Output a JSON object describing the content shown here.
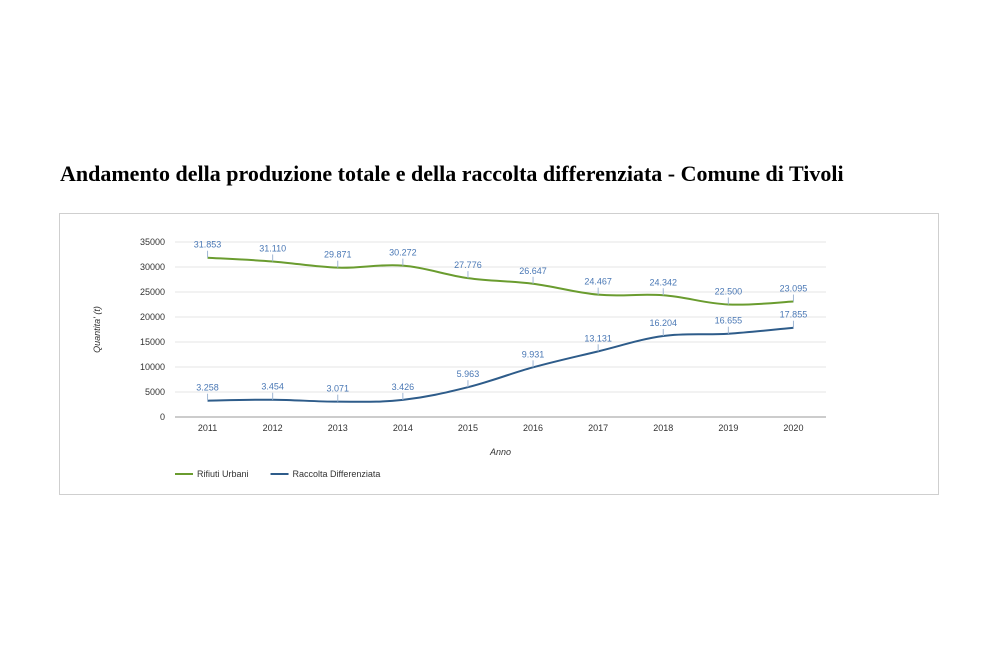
{
  "page": {
    "title": "Andamento della produzione totale e della raccolta differenziata - Comune di Tivoli"
  },
  "chart_data": {
    "type": "line",
    "title": "",
    "xlabel": "Anno",
    "ylabel": "Quantita' (t)",
    "categories": [
      "2011",
      "2012",
      "2013",
      "2014",
      "2015",
      "2016",
      "2017",
      "2018",
      "2019",
      "2020"
    ],
    "ylim": [
      0,
      35000
    ],
    "yticks": [
      0,
      5000,
      10000,
      15000,
      20000,
      25000,
      30000,
      35000
    ],
    "ytick_labels": [
      "0",
      "5000",
      "10000",
      "15000",
      "20000",
      "25000",
      "30000",
      "35000"
    ],
    "grid": true,
    "legend_position": "bottom-left",
    "series": [
      {
        "name": "Rifiuti Urbani",
        "color": "#6a9c2f",
        "values": [
          31853,
          31110,
          29871,
          30272,
          27776,
          26647,
          24467,
          24342,
          22500,
          23095
        ],
        "labels": [
          "31.853",
          "31.110",
          "29.871",
          "30.272",
          "27.776",
          "26.647",
          "24.467",
          "24.342",
          "22.500",
          "23.095"
        ]
      },
      {
        "name": "Raccolta Differenziata",
        "color": "#2e5c8a",
        "values": [
          3258,
          3454,
          3071,
          3426,
          5963,
          9931,
          13131,
          16204,
          16655,
          17855
        ],
        "labels": [
          "3.258",
          "3.454",
          "3.071",
          "3.426",
          "5.963",
          "9.931",
          "13.131",
          "16.204",
          "16.655",
          "17.855"
        ]
      }
    ]
  }
}
